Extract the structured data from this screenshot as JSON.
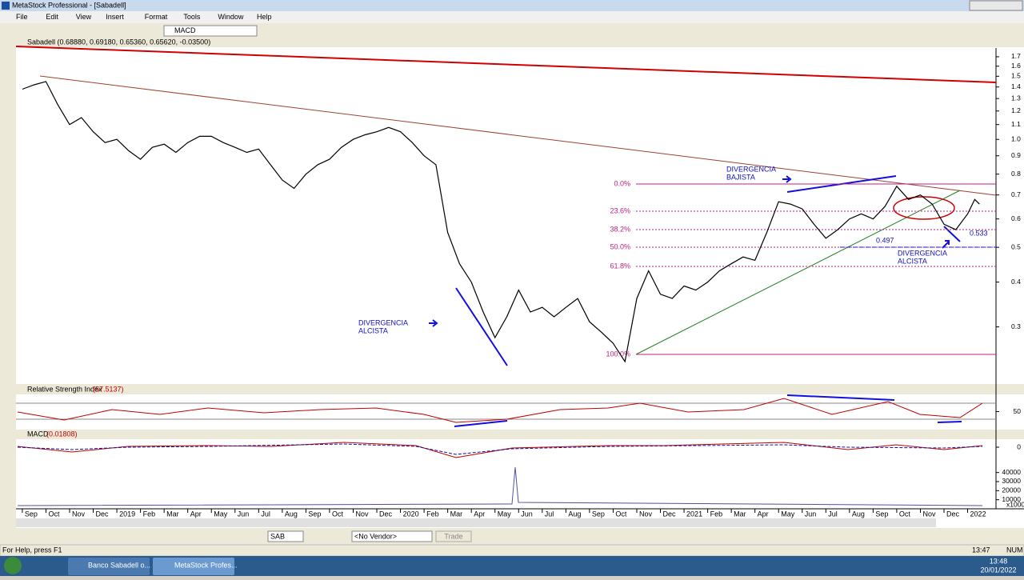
{
  "window": {
    "title": "MetaStock Professional - [Sabadell]"
  },
  "menu": [
    "File",
    "Edit",
    "View",
    "Insert",
    "Format",
    "Tools",
    "Window",
    "Help"
  ],
  "toolbar": {
    "indicator": "MACD"
  },
  "chart_data": {
    "type": "line",
    "title": "Sabadell (0.68880, 0.69180, 0.65360, 0.65620, -0.03500)",
    "color": "#000000",
    "log_scale": true,
    "x": [
      0,
      0.5,
      1,
      1.5,
      2,
      2.5,
      3,
      3.5,
      4,
      4.5,
      5,
      5.5,
      6,
      6.5,
      7,
      7.5,
      8,
      8.5,
      9,
      9.5,
      10,
      10.5,
      11,
      11.5,
      12,
      12.5,
      13,
      13.5,
      14,
      14.5,
      15,
      15.5,
      16,
      16.5,
      17,
      17.5,
      18,
      18.5,
      19,
      19.5,
      20,
      20.5,
      21,
      21.5,
      22,
      22.5,
      23,
      23.5,
      24,
      24.5,
      25,
      25.5,
      26,
      26.5,
      27,
      27.5,
      28,
      28.5,
      29,
      29.5,
      30,
      30.5,
      31,
      31.5,
      32,
      32.5,
      33,
      33.5,
      34,
      34.5,
      35,
      35.5,
      36,
      36.5,
      37,
      37.5,
      38,
      38.5,
      39,
      39.5,
      40,
      40.3,
      40.5
    ],
    "values": [
      1.38,
      1.42,
      1.45,
      1.25,
      1.1,
      1.15,
      1.05,
      0.98,
      1.0,
      0.93,
      0.88,
      0.95,
      0.97,
      0.92,
      0.98,
      1.02,
      1.02,
      0.98,
      0.95,
      0.92,
      0.94,
      0.85,
      0.77,
      0.73,
      0.8,
      0.85,
      0.88,
      0.95,
      1.0,
      1.03,
      1.05,
      1.08,
      1.05,
      0.98,
      0.9,
      0.85,
      0.55,
      0.45,
      0.4,
      0.33,
      0.28,
      0.32,
      0.38,
      0.33,
      0.34,
      0.32,
      0.34,
      0.36,
      0.31,
      0.29,
      0.27,
      0.24,
      0.36,
      0.43,
      0.37,
      0.36,
      0.39,
      0.38,
      0.4,
      0.43,
      0.45,
      0.47,
      0.46,
      0.55,
      0.67,
      0.66,
      0.64,
      0.58,
      0.53,
      0.56,
      0.6,
      0.62,
      0.6,
      0.65,
      0.74,
      0.68,
      0.7,
      0.66,
      0.58,
      0.56,
      0.62,
      0.68,
      0.66
    ],
    "ylim": [
      0.21,
      1.78
    ],
    "xlim": [
      -0.2,
      41.2
    ],
    "yticks": [
      1.7,
      1.6,
      1.5,
      1.4,
      1.3,
      1.2,
      1.1,
      {
        "value": 1,
        "label": "1.0"
      },
      0.9,
      0.8,
      0.7,
      0.6,
      0.5,
      0.4,
      0.3
    ],
    "xticks": [
      {
        "value": 0,
        "label": "Sep"
      },
      {
        "value": 1,
        "label": "Oct"
      },
      {
        "value": 2,
        "label": "Nov"
      },
      {
        "value": 3,
        "label": "Dec"
      },
      {
        "value": 4,
        "label": "2019"
      },
      {
        "value": 5,
        "label": "Feb"
      },
      {
        "value": 6,
        "label": "Mar"
      },
      {
        "value": 7,
        "label": "Apr"
      },
      {
        "value": 8,
        "label": "May"
      },
      {
        "value": 9,
        "label": "Jun"
      },
      {
        "value": 10,
        "label": "Jul"
      },
      {
        "value": 11,
        "label": "Aug"
      },
      {
        "value": 12,
        "label": "Sep"
      },
      {
        "value": 13,
        "label": "Oct"
      },
      {
        "value": 14,
        "label": "Nov"
      },
      {
        "value": 15,
        "label": "Dec"
      },
      {
        "value": 16,
        "label": "2020"
      },
      {
        "value": 17,
        "label": "Feb"
      },
      {
        "value": 18,
        "label": "Mar"
      },
      {
        "value": 19,
        "label": "Apr"
      },
      {
        "value": 20,
        "label": "May"
      },
      {
        "value": 21,
        "label": "Jun"
      },
      {
        "value": 22,
        "label": "Jul"
      },
      {
        "value": 23,
        "label": "Aug"
      },
      {
        "value": 24,
        "label": "Sep"
      },
      {
        "value": 25,
        "label": "Oct"
      },
      {
        "value": 26,
        "label": "Nov"
      },
      {
        "value": 27,
        "label": "Dec"
      },
      {
        "value": 28,
        "label": "2021"
      },
      {
        "value": 29,
        "label": "Feb"
      },
      {
        "value": 30,
        "label": "Mar"
      },
      {
        "value": 31,
        "label": "Apr"
      },
      {
        "value": 32,
        "label": "May"
      },
      {
        "value": 33,
        "label": "Jun"
      },
      {
        "value": 34,
        "label": "Jul"
      },
      {
        "value": 35,
        "label": "Aug"
      },
      {
        "value": 36,
        "label": "Sep"
      },
      {
        "value": 37,
        "label": "Oct"
      },
      {
        "value": 38,
        "label": "Nov"
      },
      {
        "value": 39,
        "label": "Dec"
      },
      {
        "value": 40,
        "label": "2022"
      }
    ],
    "fib_labels": [
      "0.0%",
      "23.6%",
      "38.2%",
      "50.0%",
      "61.8%",
      "100.0%"
    ],
    "annotations": [
      [
        "DIVERGENCIA",
        "BAJISTA"
      ],
      [
        "DIVERGENCIA",
        "ALCISTA"
      ],
      [
        "DIVERGENCIA",
        "ALCISTA"
      ]
    ],
    "level_labels": [
      "0.497",
      "0.533"
    ]
  },
  "rsi": {
    "title": "Relative Strength Index",
    "value": "(57.5137)",
    "ylim": [
      0,
      100
    ],
    "yticks": [
      50
    ]
  },
  "macd": {
    "title": "MACD",
    "value": "(0.01808)",
    "ylim": [
      -0.06,
      0.06
    ],
    "yticks": [
      0
    ]
  },
  "volume": {
    "ylim": [
      0,
      49400
    ],
    "yticks": [
      40000,
      30000,
      20000,
      10000
    ],
    "unit": "x1000"
  },
  "bottom_bar": {
    "symbol": "SAB",
    "vendor": "<No Vendor>",
    "trade": "Trade"
  },
  "status": {
    "help": "For Help, press F1",
    "time": "13:47",
    "num": "NUM"
  },
  "taskbar": {
    "items": [
      "Banco Sabadell o...",
      "MetaStock Profes..."
    ],
    "time": "13:48",
    "date": "20/01/2022"
  }
}
